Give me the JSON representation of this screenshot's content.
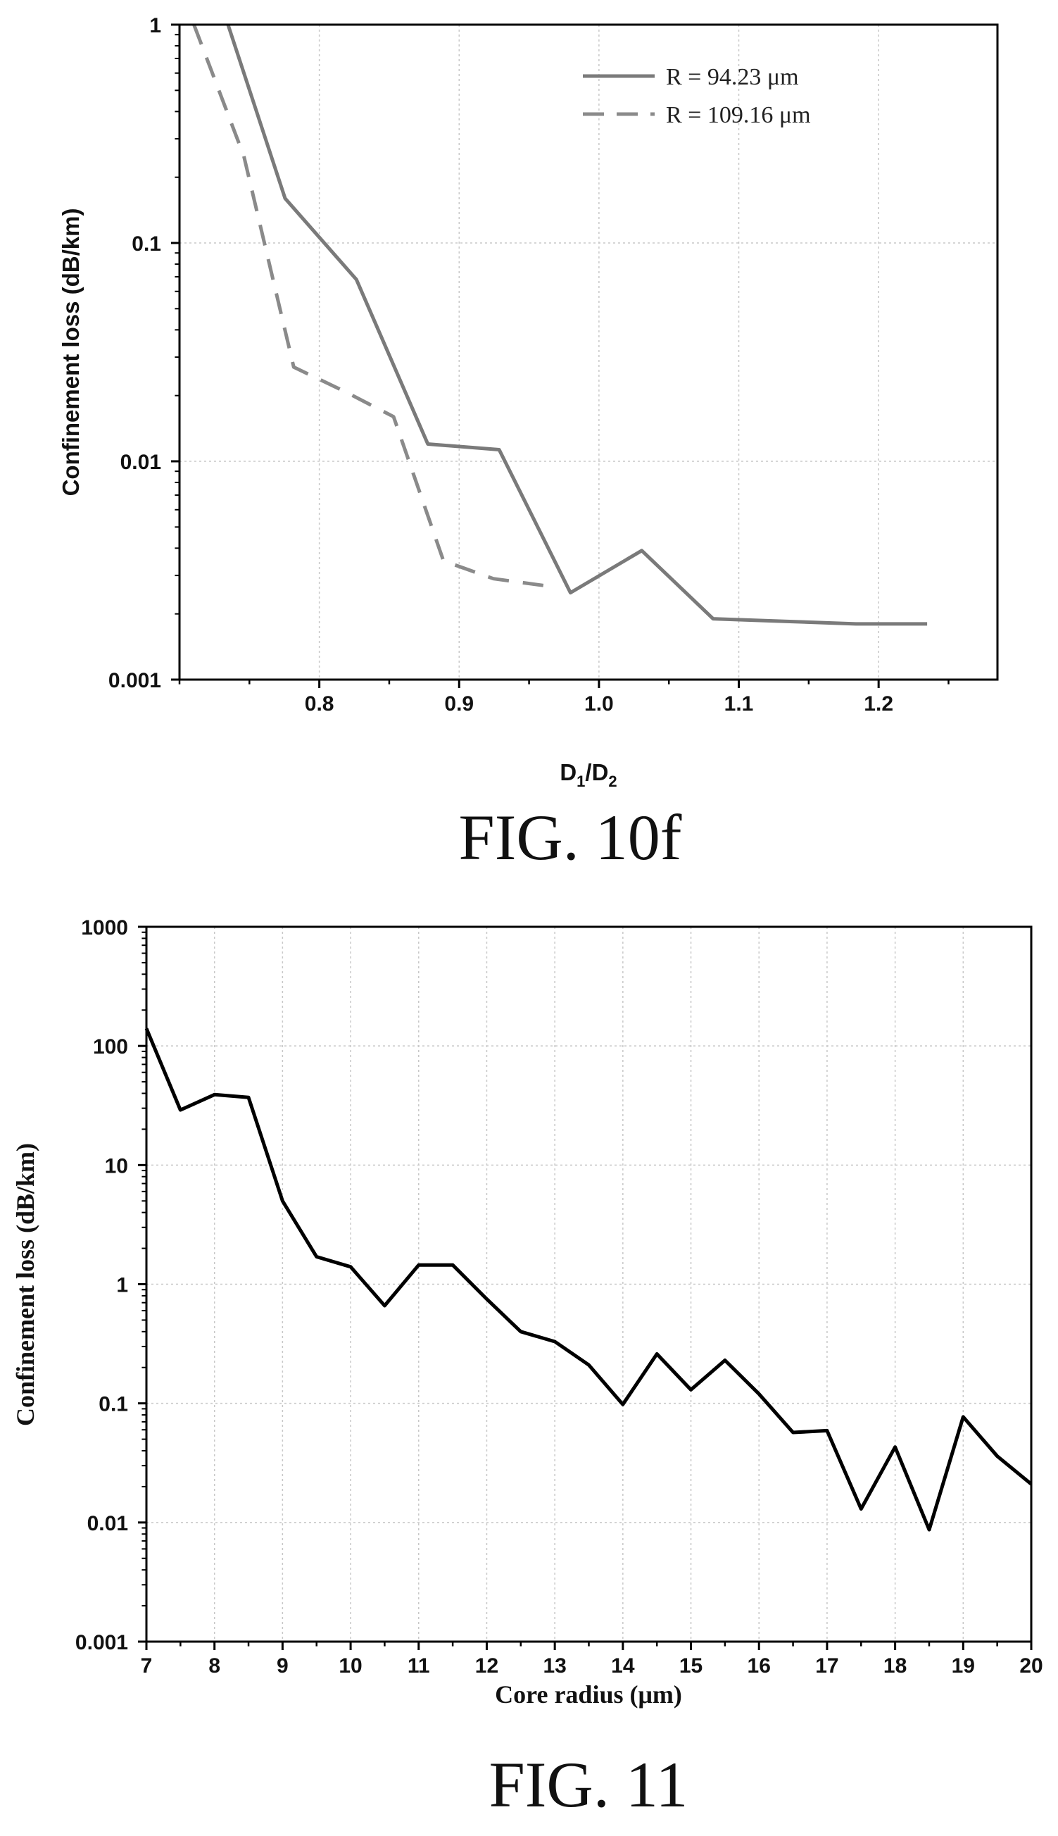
{
  "chart_data": [
    {
      "type": "line",
      "caption": "FIG. 10f",
      "xlabel": "D1/D2",
      "xlabel_main": "D",
      "xlabel_sub1": "1",
      "xlabel_mid": "/D",
      "xlabel_sub2": "2",
      "ylabel": "Confinement loss (dB/km)",
      "y_scale": "log",
      "xlim": [
        0.7,
        1.285
      ],
      "ylim": [
        0.001,
        1
      ],
      "x_ticks": [
        0.8,
        0.9,
        1.0,
        1.1,
        1.2
      ],
      "x_tick_labels": [
        "0.8",
        "0.9",
        "1.0",
        "1.1",
        "1.2"
      ],
      "y_ticks": [
        0.001,
        0.01,
        0.1,
        1
      ],
      "y_tick_labels": [
        "0.001",
        "0.01",
        "0.1",
        "1"
      ],
      "grid": true,
      "legend_position": "top-right",
      "series": [
        {
          "name": "R = 94.23 μm",
          "style": "solid",
          "color": "#7a7a7a",
          "x": [
            0.7347,
            0.7755,
            0.8265,
            0.8776,
            0.9286,
            0.9796,
            1.0306,
            1.0816,
            1.1327,
            1.1837,
            1.2347
          ],
          "y": [
            1.0,
            0.16,
            0.068,
            0.012,
            0.0113,
            0.0025,
            0.0039,
            0.0019,
            0.00185,
            0.0018,
            0.0018
          ]
        },
        {
          "name": "R = 109.16 μm",
          "style": "dashed",
          "color": "#8a8a8a",
          "x": [
            0.7103,
            0.746,
            0.7817,
            0.8174,
            0.8531,
            0.8888,
            0.9245,
            0.9602
          ],
          "y": [
            1.0,
            0.25,
            0.027,
            0.021,
            0.016,
            0.0035,
            0.0029,
            0.0027
          ]
        }
      ]
    },
    {
      "type": "line",
      "caption": "FIG. 11",
      "xlabel": "Core radius (μm)",
      "ylabel": "Confinement loss (dB/km)",
      "y_scale": "log",
      "xlim": [
        7,
        20
      ],
      "ylim": [
        0.001,
        1000
      ],
      "x_ticks": [
        7,
        8,
        9,
        10,
        11,
        12,
        13,
        14,
        15,
        16,
        17,
        18,
        19,
        20
      ],
      "x_tick_labels": [
        "7",
        "8",
        "9",
        "10",
        "11",
        "12",
        "13",
        "14",
        "15",
        "16",
        "17",
        "18",
        "19",
        "20"
      ],
      "y_ticks": [
        0.001,
        0.01,
        0.1,
        1,
        10,
        100,
        1000
      ],
      "y_tick_labels": [
        "0.001",
        "0.01",
        "0.1",
        "1",
        "10",
        "100",
        "1000"
      ],
      "grid": true,
      "series": [
        {
          "style": "solid",
          "color": "#000000",
          "x": [
            7,
            7.5,
            8,
            8.5,
            9,
            9.5,
            10,
            10.5,
            11,
            11.5,
            12,
            12.5,
            13,
            13.5,
            14,
            14.5,
            15,
            15.5,
            16,
            16.5,
            17,
            17.5,
            18,
            18.5,
            19,
            19.5,
            20
          ],
          "y": [
            140,
            29,
            39,
            37,
            5,
            1.7,
            1.4,
            0.66,
            1.45,
            1.45,
            0.75,
            0.4,
            0.33,
            0.21,
            0.098,
            0.26,
            0.13,
            0.23,
            0.12,
            0.057,
            0.059,
            0.013,
            0.043,
            0.0087,
            0.077,
            0.036,
            0.021
          ]
        }
      ]
    }
  ]
}
